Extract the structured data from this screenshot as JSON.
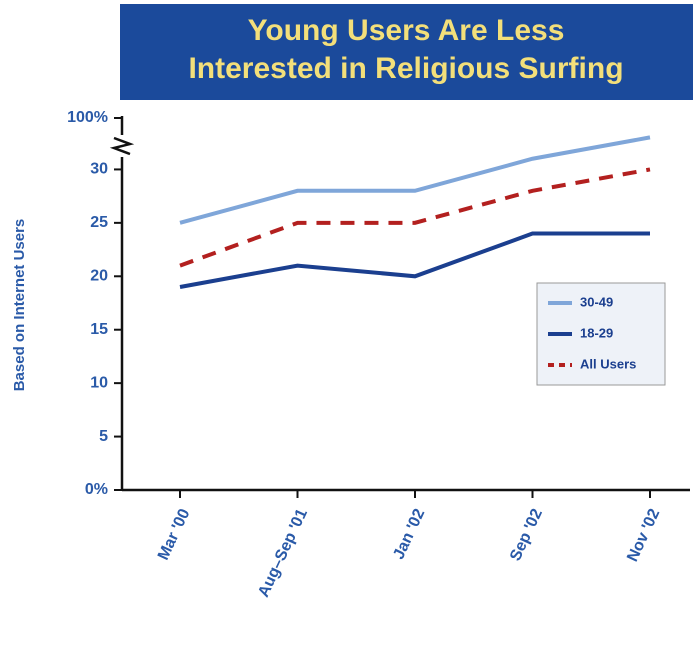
{
  "chart_data": {
    "type": "line",
    "title": [
      "Young Users Are Less",
      "Interested in Religious Surfing"
    ],
    "y_label": "Based on Internet Users",
    "categories": [
      "Mar '00",
      "Aug–Sep '01",
      "Jan '02",
      "Sep '02",
      "Nov '02"
    ],
    "series": [
      {
        "name": "30-49",
        "color": "#7fa6d9",
        "dashed": false,
        "values": [
          25,
          28,
          28,
          31,
          33
        ]
      },
      {
        "name": "18-29",
        "color": "#1b3f8f",
        "dashed": false,
        "values": [
          19,
          21,
          20,
          24,
          24
        ]
      },
      {
        "name": "All Users",
        "color": "#b3201f",
        "dashed": true,
        "values": [
          21,
          25,
          25,
          28,
          30
        ]
      }
    ],
    "ylim": [
      0,
      35
    ],
    "yticks": [
      {
        "value": 0,
        "label": "0%"
      },
      5,
      10,
      15,
      20,
      25,
      30,
      {
        "value": 100,
        "label": "100%"
      }
    ],
    "axis_break": true,
    "legend": "right"
  }
}
